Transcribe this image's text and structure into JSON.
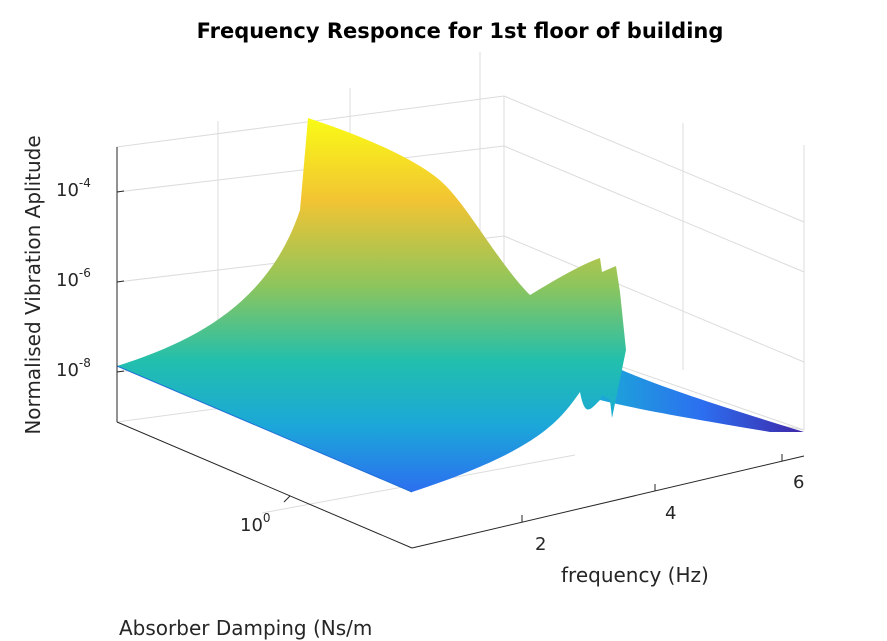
{
  "chart_data": {
    "type": "surface",
    "title": "Frequency Responce for 1st floor of building",
    "xlabel": "frequency (Hz)",
    "ylabel": "Absorber Damping (Ns/m",
    "zlabel": "Normalised Vibration Aplitude",
    "x_ticks": [
      "2",
      "4",
      "6"
    ],
    "y_ticks": [
      {
        "base": "10",
        "exp": "0"
      }
    ],
    "z_ticks": [
      {
        "base": "10",
        "exp": "-4"
      },
      {
        "base": "10",
        "exp": "-6"
      },
      {
        "base": "10",
        "exp": "-8"
      }
    ],
    "z_scale": "log",
    "y_scale": "log",
    "grid": true,
    "colormap": "parula",
    "colormap_stops": [
      "#3e26a8",
      "#2c6ff0",
      "#1ba8d8",
      "#22bfad",
      "#8cc55d",
      "#f2c433",
      "#f9fb15"
    ],
    "ridge": {
      "first_peak_hz": 1.1,
      "first_peak_amplitude": 0.0005,
      "notch_hz": 3.2,
      "notch_amplitude": 1e-09,
      "second_peaks_hz": [
        3.9,
        4.1
      ],
      "second_peaks_amplitude": 1e-06,
      "high_freq_end_amplitude": 1e-09
    }
  }
}
